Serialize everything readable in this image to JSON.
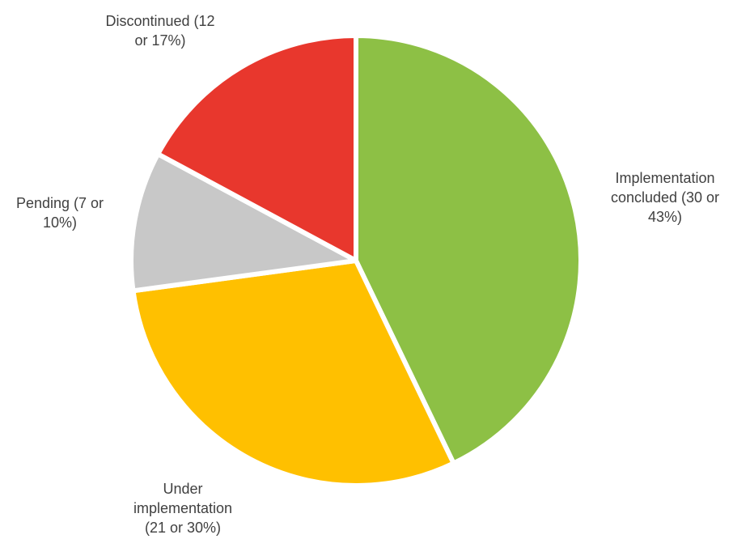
{
  "chart_data": {
    "type": "pie",
    "title": "",
    "slices": [
      {
        "category": "Implementation concluded",
        "count": 30,
        "percent": 43,
        "color": "#8DC045",
        "label_lines": [
          "Implementation",
          "concluded (30 or",
          "43%)"
        ]
      },
      {
        "category": "Under implementation",
        "count": 21,
        "percent": 30,
        "color": "#FFC000",
        "label_lines": [
          "Under",
          "implementation",
          "(21 or 30%)"
        ]
      },
      {
        "category": "Pending",
        "count": 7,
        "percent": 10,
        "color": "#C8C8C8",
        "label_lines": [
          "Pending (7 or",
          "10%)"
        ]
      },
      {
        "category": "Discontinued",
        "count": 12,
        "percent": 17,
        "color": "#E8372D",
        "label_lines": [
          "Discontinued (12",
          "or 17%)"
        ]
      }
    ]
  }
}
